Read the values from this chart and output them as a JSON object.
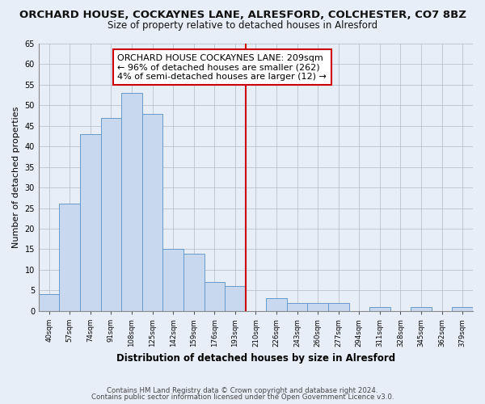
{
  "title": "ORCHARD HOUSE, COCKAYNES LANE, ALRESFORD, COLCHESTER, CO7 8BZ",
  "subtitle": "Size of property relative to detached houses in Alresford",
  "xlabel": "Distribution of detached houses by size in Alresford",
  "ylabel": "Number of detached properties",
  "bar_labels": [
    "40sqm",
    "57sqm",
    "74sqm",
    "91sqm",
    "108sqm",
    "125sqm",
    "142sqm",
    "159sqm",
    "176sqm",
    "193sqm",
    "210sqm",
    "226sqm",
    "243sqm",
    "260sqm",
    "277sqm",
    "294sqm",
    "311sqm",
    "328sqm",
    "345sqm",
    "362sqm",
    "379sqm"
  ],
  "bar_values": [
    4,
    26,
    43,
    47,
    53,
    48,
    15,
    14,
    7,
    6,
    0,
    3,
    2,
    2,
    2,
    0,
    1,
    0,
    1,
    0,
    1
  ],
  "bar_color": "#c8d8ee",
  "bar_edgecolor": "#6699cc",
  "ylim": [
    0,
    65
  ],
  "yticks": [
    0,
    5,
    10,
    15,
    20,
    25,
    30,
    35,
    40,
    45,
    50,
    55,
    60,
    65
  ],
  "vline_color": "#cc0000",
  "annotation_line1": "ORCHARD HOUSE COCKAYNES LANE: 209sqm",
  "annotation_line2": "← 96% of detached houses are smaller (262)",
  "annotation_line3": "4% of semi-detached houses are larger (12) →",
  "footnote1": "Contains HM Land Registry data © Crown copyright and database right 2024.",
  "footnote2": "Contains public sector information licensed under the Open Government Licence v3.0.",
  "bg_color": "#e8eef7",
  "plot_bg_color": "#e8eef7",
  "title_fontsize": 9.5,
  "subtitle_fontsize": 8.5,
  "annotation_fontsize": 8,
  "footnote_fontsize": 6.2,
  "ylabel_fontsize": 8,
  "xlabel_fontsize": 8.5
}
